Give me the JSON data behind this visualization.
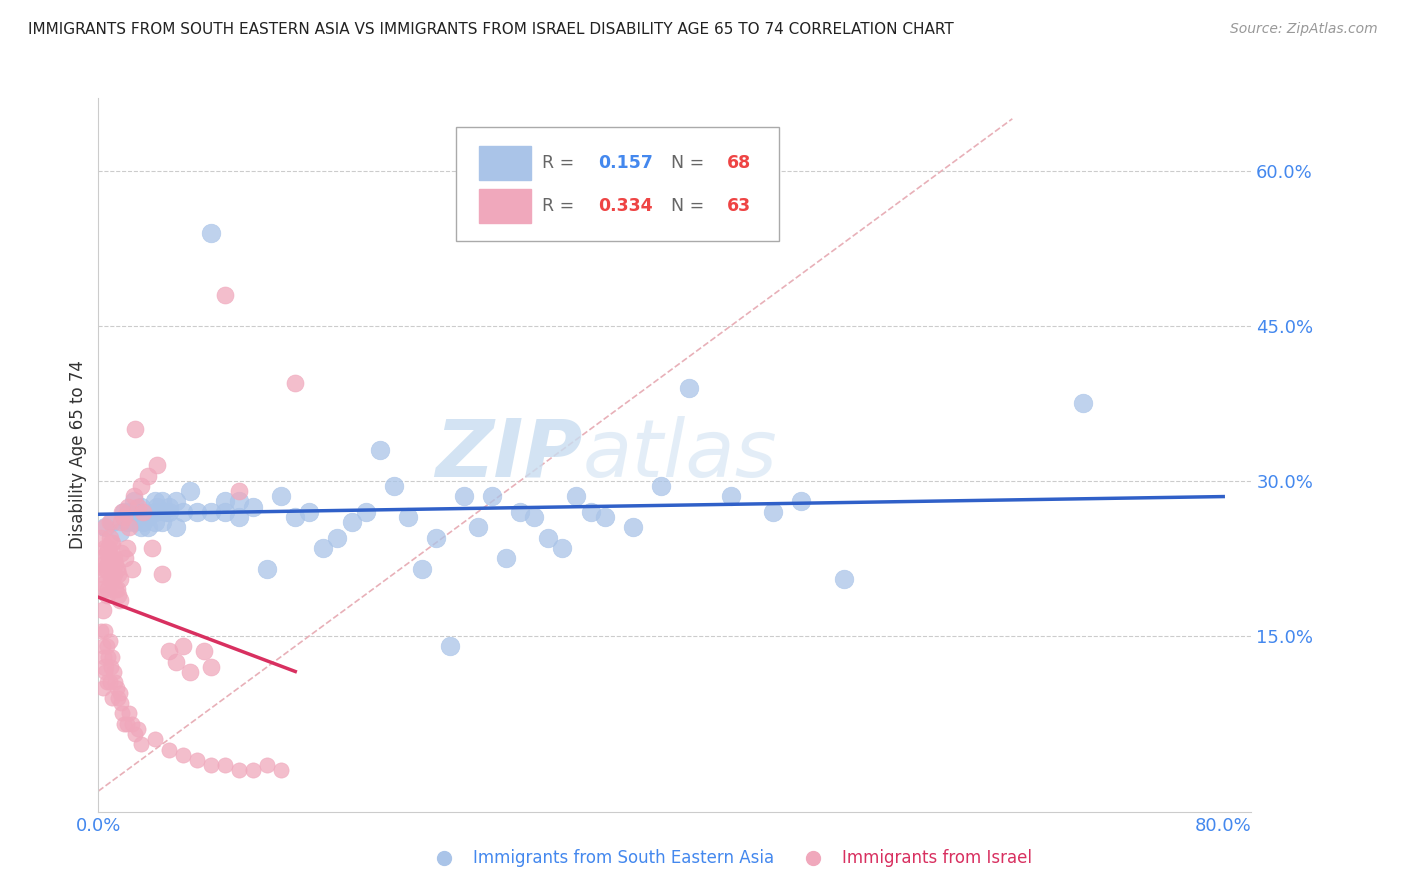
{
  "title": "IMMIGRANTS FROM SOUTH EASTERN ASIA VS IMMIGRANTS FROM ISRAEL DISABILITY AGE 65 TO 74 CORRELATION CHART",
  "source": "Source: ZipAtlas.com",
  "ylabel": "Disability Age 65 to 74",
  "xlim": [
    0.0,
    0.82
  ],
  "ylim": [
    -0.02,
    0.67
  ],
  "yticks": [
    0.15,
    0.3,
    0.45,
    0.6
  ],
  "ytick_labels": [
    "15.0%",
    "30.0%",
    "45.0%",
    "60.0%"
  ],
  "xticks": [
    0.0,
    0.8
  ],
  "xtick_labels": [
    "0.0%",
    "80.0%"
  ],
  "grid_color": "#cccccc",
  "background_color": "#ffffff",
  "watermark_text": "ZIP",
  "watermark_text2": "atlas",
  "blue_R": 0.157,
  "blue_N": 68,
  "pink_R": 0.334,
  "pink_N": 63,
  "blue_color": "#aac4e8",
  "pink_color": "#f0a8bc",
  "blue_line_color": "#3060c8",
  "pink_line_color": "#d83060",
  "diag_line_color": "#e8b0b8",
  "blue_scatter_x": [
    0.005,
    0.01,
    0.015,
    0.018,
    0.02,
    0.022,
    0.025,
    0.025,
    0.028,
    0.03,
    0.03,
    0.032,
    0.035,
    0.035,
    0.04,
    0.04,
    0.04,
    0.042,
    0.045,
    0.045,
    0.048,
    0.05,
    0.05,
    0.055,
    0.055,
    0.06,
    0.065,
    0.07,
    0.08,
    0.08,
    0.09,
    0.09,
    0.1,
    0.1,
    0.11,
    0.12,
    0.13,
    0.14,
    0.15,
    0.16,
    0.17,
    0.18,
    0.19,
    0.2,
    0.21,
    0.22,
    0.23,
    0.24,
    0.25,
    0.26,
    0.27,
    0.28,
    0.29,
    0.3,
    0.31,
    0.32,
    0.33,
    0.34,
    0.35,
    0.36,
    0.38,
    0.4,
    0.42,
    0.45,
    0.48,
    0.5,
    0.53,
    0.7
  ],
  "blue_scatter_y": [
    0.255,
    0.26,
    0.25,
    0.27,
    0.26,
    0.27,
    0.26,
    0.28,
    0.27,
    0.255,
    0.275,
    0.26,
    0.265,
    0.255,
    0.27,
    0.26,
    0.28,
    0.275,
    0.28,
    0.26,
    0.27,
    0.275,
    0.27,
    0.255,
    0.28,
    0.27,
    0.29,
    0.27,
    0.54,
    0.27,
    0.28,
    0.27,
    0.265,
    0.28,
    0.275,
    0.215,
    0.285,
    0.265,
    0.27,
    0.235,
    0.245,
    0.26,
    0.27,
    0.33,
    0.295,
    0.265,
    0.215,
    0.245,
    0.14,
    0.285,
    0.255,
    0.285,
    0.225,
    0.27,
    0.265,
    0.245,
    0.235,
    0.285,
    0.27,
    0.265,
    0.255,
    0.295,
    0.39,
    0.285,
    0.27,
    0.28,
    0.205,
    0.375
  ],
  "pink_scatter_x": [
    0.002,
    0.002,
    0.003,
    0.003,
    0.003,
    0.004,
    0.004,
    0.005,
    0.005,
    0.005,
    0.005,
    0.006,
    0.006,
    0.006,
    0.007,
    0.007,
    0.007,
    0.008,
    0.008,
    0.008,
    0.009,
    0.009,
    0.009,
    0.01,
    0.01,
    0.01,
    0.011,
    0.011,
    0.012,
    0.012,
    0.013,
    0.013,
    0.014,
    0.014,
    0.015,
    0.015,
    0.016,
    0.016,
    0.017,
    0.018,
    0.019,
    0.02,
    0.021,
    0.022,
    0.024,
    0.025,
    0.026,
    0.028,
    0.03,
    0.032,
    0.035,
    0.038,
    0.042,
    0.045,
    0.05,
    0.055,
    0.06,
    0.065,
    0.075,
    0.08,
    0.09,
    0.1,
    0.14
  ],
  "pink_scatter_y": [
    0.245,
    0.225,
    0.21,
    0.195,
    0.175,
    0.22,
    0.2,
    0.255,
    0.235,
    0.215,
    0.12,
    0.23,
    0.215,
    0.19,
    0.235,
    0.22,
    0.195,
    0.26,
    0.245,
    0.225,
    0.24,
    0.225,
    0.205,
    0.24,
    0.225,
    0.205,
    0.225,
    0.21,
    0.22,
    0.195,
    0.215,
    0.195,
    0.21,
    0.19,
    0.205,
    0.185,
    0.26,
    0.23,
    0.27,
    0.265,
    0.225,
    0.235,
    0.275,
    0.255,
    0.215,
    0.285,
    0.35,
    0.275,
    0.295,
    0.27,
    0.305,
    0.235,
    0.315,
    0.21,
    0.135,
    0.125,
    0.14,
    0.115,
    0.135,
    0.12,
    0.48,
    0.29,
    0.395
  ],
  "pink_scatter_x2": [
    0.002,
    0.003,
    0.003,
    0.004,
    0.005,
    0.005,
    0.006,
    0.006,
    0.007,
    0.008,
    0.008,
    0.009,
    0.01,
    0.01,
    0.011,
    0.012,
    0.013,
    0.014,
    0.015,
    0.016,
    0.017,
    0.018,
    0.02,
    0.022,
    0.024,
    0.026,
    0.028,
    0.03,
    0.04,
    0.05,
    0.06,
    0.07,
    0.08,
    0.09,
    0.1,
    0.11,
    0.12,
    0.13
  ],
  "pink_scatter_y2": [
    0.155,
    0.14,
    0.1,
    0.13,
    0.155,
    0.115,
    0.14,
    0.105,
    0.13,
    0.145,
    0.105,
    0.12,
    0.13,
    0.09,
    0.115,
    0.105,
    0.1,
    0.09,
    0.095,
    0.085,
    0.075,
    0.065,
    0.065,
    0.075,
    0.065,
    0.055,
    0.06,
    0.045,
    0.05,
    0.04,
    0.035,
    0.03,
    0.025,
    0.025,
    0.02,
    0.02,
    0.025,
    0.02
  ]
}
